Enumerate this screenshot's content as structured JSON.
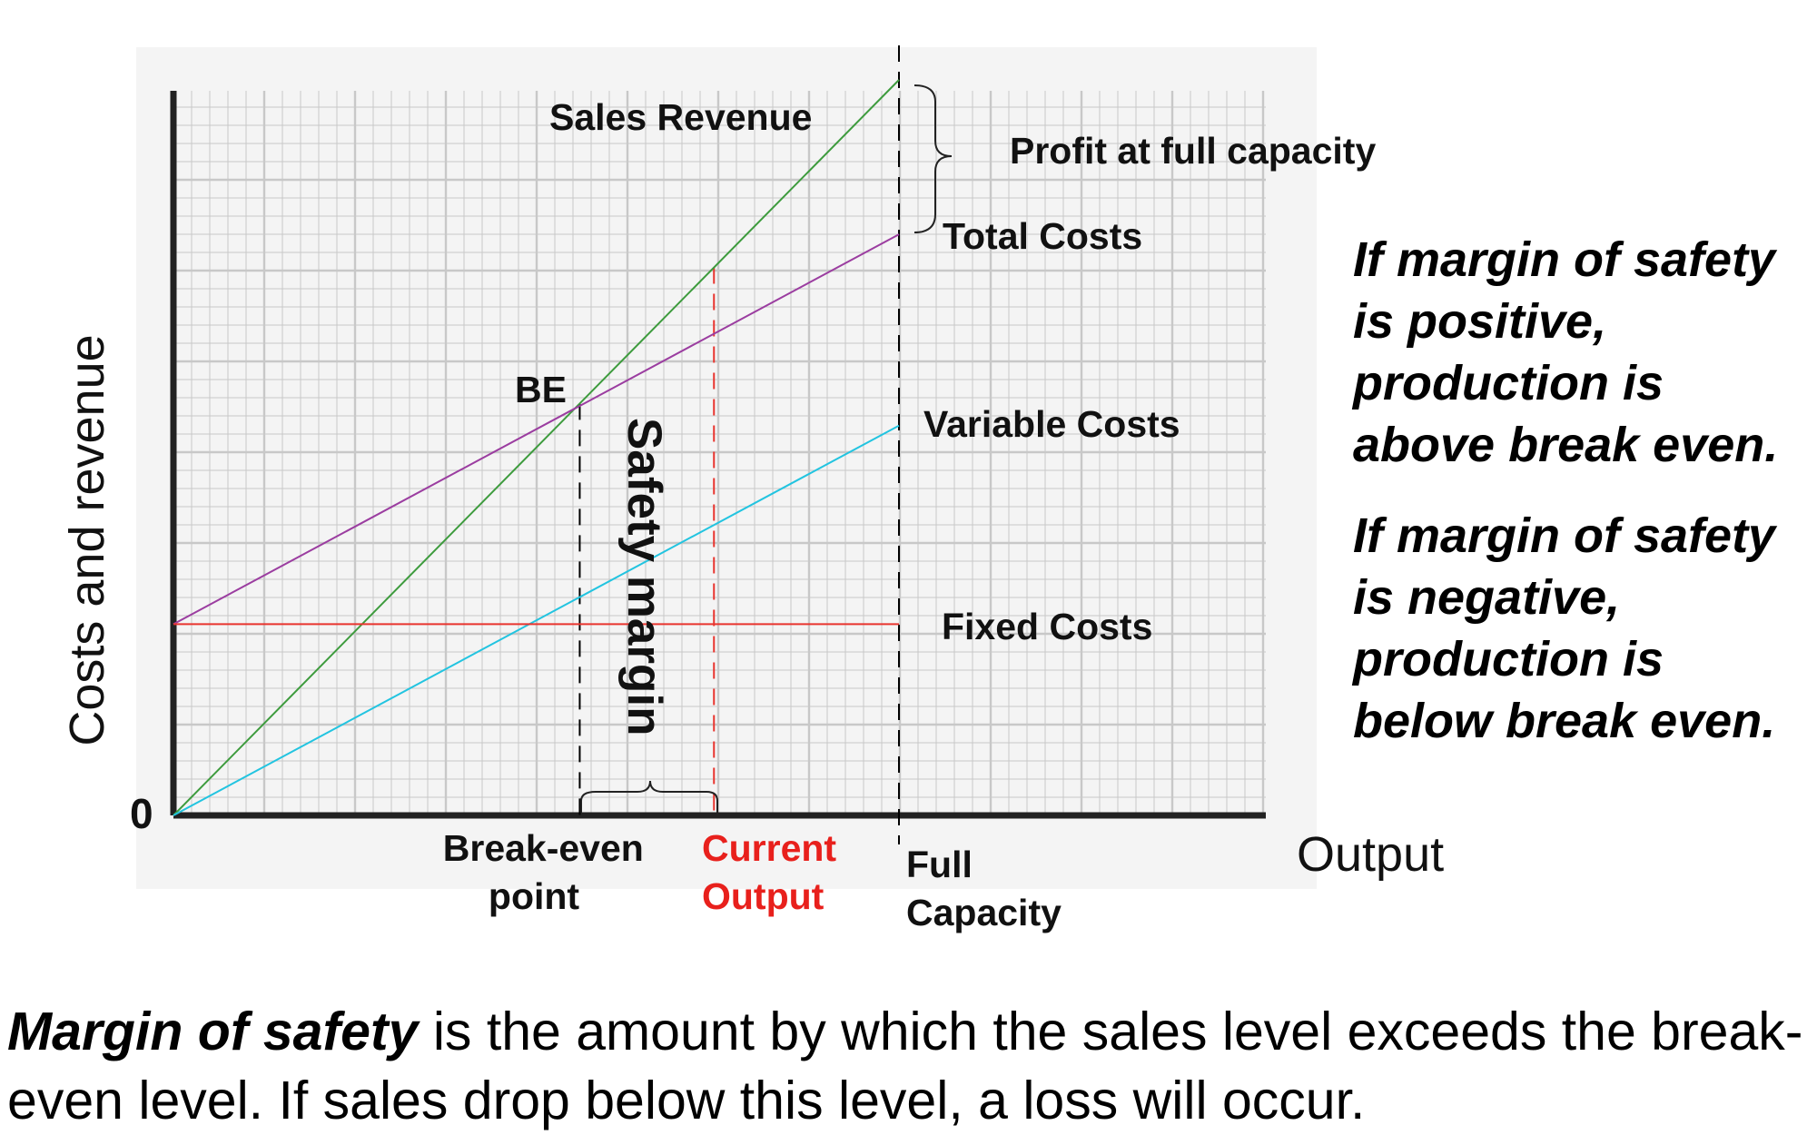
{
  "chart_data": {
    "type": "line",
    "xlabel": "Output",
    "ylabel": "Costs and revenue",
    "origin_label": "0",
    "x_range": [
      0,
      100
    ],
    "y_range": [
      0,
      100
    ],
    "grid": true,
    "series": [
      {
        "name": "Sales Revenue",
        "color": "#3d9b3d",
        "x": [
          0,
          100
        ],
        "y": [
          0,
          100
        ]
      },
      {
        "name": "Total Costs",
        "color": "#9b3da0",
        "x": [
          0,
          100
        ],
        "y": [
          26,
          79
        ]
      },
      {
        "name": "Variable Costs",
        "color": "#22c4e0",
        "x": [
          0,
          100
        ],
        "y": [
          0,
          53
        ]
      },
      {
        "name": "Fixed Costs",
        "color": "#e8342e",
        "x": [
          0,
          100
        ],
        "y": [
          26,
          26
        ]
      }
    ],
    "markers": [
      {
        "label": "Break-even point",
        "x": 56,
        "color": "#000000"
      },
      {
        "label": "Current Output",
        "x": 74.5,
        "color": "#e8342e"
      },
      {
        "label": "Full Capacity",
        "x": 100,
        "color": "#000000"
      }
    ],
    "annotations": {
      "break_even": "BE",
      "safety_margin": "Safety margin",
      "profit": "Profit at full capacity"
    }
  },
  "notes": {
    "positive": "If margin of safety is positive, production is above break even.",
    "negative": "If margin of safety is negative, production is below break even."
  },
  "definition": {
    "term": "Margin of safety",
    "text": " is the amount by which the sales level exceeds the break-even level. If sales drop below this level, a loss will occur."
  },
  "colors": {
    "grid_background": "#f4f4f4",
    "grid_line": "#c8c8c8",
    "axis": "#222222",
    "current_output_label": "#e8201c"
  }
}
